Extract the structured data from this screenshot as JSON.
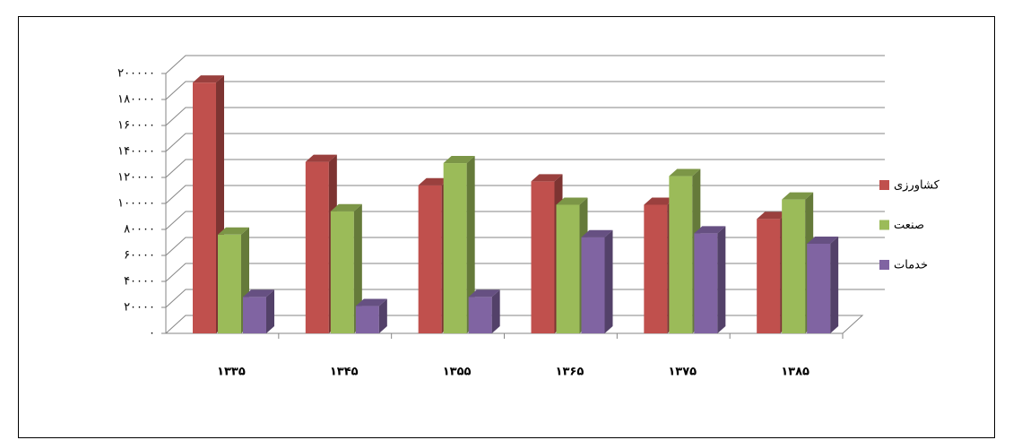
{
  "chart_data": {
    "type": "bar3d",
    "categories": [
      "۱۳۳۵",
      "۱۳۴۵",
      "۱۳۵۵",
      "۱۳۶۵",
      "۱۳۷۵",
      "۱۳۸۵"
    ],
    "series": [
      {
        "name": "کشاورزی",
        "color": "#c0504d",
        "values": [
          193000,
          132000,
          114000,
          117000,
          99000,
          88000
        ]
      },
      {
        "name": "صنعت",
        "color": "#9bbb59",
        "values": [
          76000,
          94000,
          131000,
          99000,
          121000,
          103000
        ]
      },
      {
        "name": "خدمات",
        "color": "#8064a2",
        "values": [
          28000,
          21000,
          28000,
          74000,
          77000,
          69000
        ]
      }
    ],
    "ylim": [
      0,
      200000
    ],
    "yticks": [
      {
        "value": 0,
        "label": "۰"
      },
      {
        "value": 20000,
        "label": "۲۰۰۰۰"
      },
      {
        "value": 40000,
        "label": "۴۰۰۰۰"
      },
      {
        "value": 60000,
        "label": "۶۰۰۰۰"
      },
      {
        "value": 80000,
        "label": "۸۰۰۰۰"
      },
      {
        "value": 100000,
        "label": "۱۰۰۰۰۰"
      },
      {
        "value": 120000,
        "label": "۱۲۰۰۰۰"
      },
      {
        "value": 140000,
        "label": "۱۴۰۰۰۰"
      },
      {
        "value": 160000,
        "label": "۱۶۰۰۰۰"
      },
      {
        "value": 180000,
        "label": "۱۸۰۰۰۰"
      },
      {
        "value": 200000,
        "label": "۲۰۰۰۰۰"
      }
    ],
    "grid": true,
    "legend": "right"
  }
}
